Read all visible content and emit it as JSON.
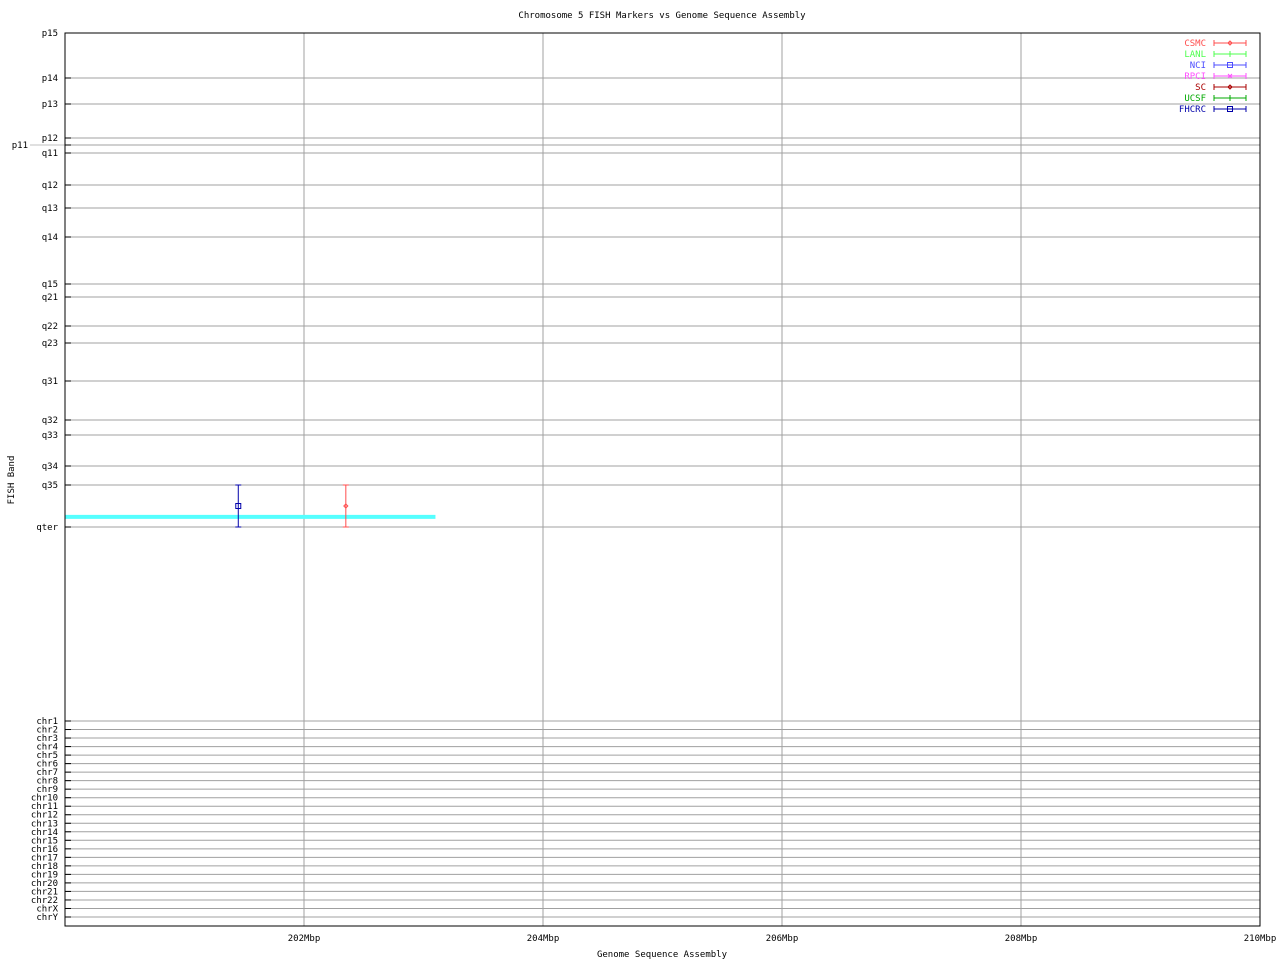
{
  "chart_data": {
    "type": "scatter",
    "title": "Chromosome 5 FISH Markers vs Genome Sequence Assembly",
    "xlabel": "Genome Sequence Assembly",
    "ylabel": "FISH Band",
    "xlim": [
      200,
      210
    ],
    "x_unit": "Mbp",
    "x_ticks": [
      "202Mbp",
      "204Mbp",
      "206Mbp",
      "208Mbp",
      "210Mbp"
    ],
    "x_tick_values": [
      202,
      204,
      206,
      208,
      210
    ],
    "y_band_ticks": [
      "p15",
      "p14",
      "p13",
      "p12",
      "p11",
      "q11",
      "q12",
      "q13",
      "q14",
      "q15",
      "q21",
      "q22",
      "q23",
      "q31",
      "q32",
      "q33",
      "q34",
      "q35",
      "qter"
    ],
    "y_chr_ticks": [
      "chr1",
      "chr2",
      "chr3",
      "chr4",
      "chr5",
      "chr6",
      "chr7",
      "chr8",
      "chr9",
      "chr10",
      "chr11",
      "chr12",
      "chr13",
      "chr14",
      "chr15",
      "chr16",
      "chr17",
      "chr18",
      "chr19",
      "chr20",
      "chr21",
      "chr22",
      "chrX",
      "chrY"
    ],
    "grid": true,
    "legend_position": "top-right",
    "series": [
      {
        "name": "CSMC",
        "color": "#ff4d4d",
        "marker": "diamond",
        "points": [
          {
            "x": 202.35,
            "band_low": "q35",
            "band_high": "qter"
          }
        ]
      },
      {
        "name": "LANL",
        "color": "#4dff4d",
        "marker": "plus",
        "points": []
      },
      {
        "name": "NCI",
        "color": "#4d4dff",
        "marker": "square",
        "points": []
      },
      {
        "name": "RPCI",
        "color": "#ff4dff",
        "marker": "cross",
        "points": []
      },
      {
        "name": "SC",
        "color": "#aa0000",
        "marker": "diamond",
        "points": []
      },
      {
        "name": "UCSF",
        "color": "#00aa00",
        "marker": "plus",
        "points": []
      },
      {
        "name": "FHCRC",
        "color": "#0000aa",
        "marker": "square",
        "points": [
          {
            "x": 201.45,
            "band_low": "q35",
            "band_high": "qter"
          }
        ]
      }
    ],
    "sequence_extent": {
      "color": "#55ffff",
      "x_start": 200,
      "x_end": 203.1,
      "band_between": [
        "q35",
        "qter"
      ]
    }
  }
}
